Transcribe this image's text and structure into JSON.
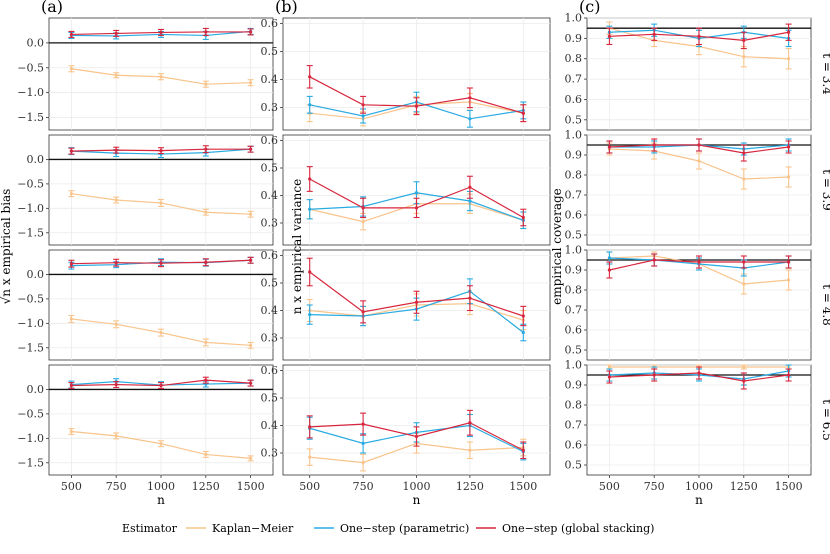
{
  "figure": {
    "column_labels": [
      "(a)",
      "(b)",
      "(c)"
    ],
    "x_title": "n",
    "legend": {
      "title": "Estimator",
      "entries": [
        {
          "name": "Kaplan−Meier",
          "color": "#F8C48C"
        },
        {
          "name": "One−step (parametric)",
          "color": "#29ABE2"
        },
        {
          "name": "One−step (global stacking)",
          "color": "#D7263D"
        }
      ]
    }
  },
  "chart_data": {
    "type": "line",
    "x": [
      500,
      750,
      1000,
      1250,
      1500
    ],
    "x_tick_labels": [
      "500",
      "750",
      "1000",
      "1250",
      "1500"
    ],
    "facet_rows": [
      "t = 3.4",
      "t = 3.9",
      "t = 4.8",
      "t = 6.5"
    ],
    "columns": [
      {
        "key": "a",
        "ylabel": "√n x empirical bias",
        "ylim": [
          -1.75,
          0.5
        ],
        "yticks": [
          0.0,
          -0.5,
          -1.0,
          -1.5
        ],
        "ytick_labels": [
          "0.0",
          "−0.5",
          "−1.0",
          "−1.5"
        ],
        "reference_line": 0,
        "rows": [
          [
            {
              "name": "Kaplan−Meier",
              "values": [
                -0.52,
                -0.65,
                -0.68,
                -0.83,
                -0.8
              ],
              "err": [
                0.06,
                0.05,
                0.06,
                0.06,
                0.06
              ]
            },
            {
              "name": "One−step (parametric)",
              "values": [
                0.15,
                0.14,
                0.17,
                0.15,
                0.23
              ],
              "err": [
                0.06,
                0.06,
                0.06,
                0.08,
                0.06
              ]
            },
            {
              "name": "One−step (global stacking)",
              "values": [
                0.17,
                0.19,
                0.21,
                0.22,
                0.22
              ],
              "err": [
                0.06,
                0.06,
                0.06,
                0.07,
                0.06
              ]
            }
          ],
          [
            {
              "name": "Kaplan−Meier",
              "values": [
                -0.7,
                -0.83,
                -0.89,
                -1.08,
                -1.12
              ],
              "err": [
                0.06,
                0.06,
                0.07,
                0.06,
                0.06
              ]
            },
            {
              "name": "One−step (parametric)",
              "values": [
                0.17,
                0.13,
                0.11,
                0.14,
                0.21
              ],
              "err": [
                0.07,
                0.07,
                0.07,
                0.07,
                0.06
              ]
            },
            {
              "name": "One−step (global stacking)",
              "values": [
                0.17,
                0.19,
                0.18,
                0.21,
                0.21
              ],
              "err": [
                0.06,
                0.06,
                0.06,
                0.07,
                0.06
              ]
            }
          ],
          [
            {
              "name": "Kaplan−Meier",
              "values": [
                -0.91,
                -1.02,
                -1.19,
                -1.39,
                -1.45
              ],
              "err": [
                0.07,
                0.07,
                0.07,
                0.07,
                0.06
              ]
            },
            {
              "name": "One−step (parametric)",
              "values": [
                0.18,
                0.2,
                0.25,
                0.24,
                0.29
              ],
              "err": [
                0.07,
                0.06,
                0.07,
                0.07,
                0.06
              ]
            },
            {
              "name": "One−step (global stacking)",
              "values": [
                0.22,
                0.24,
                0.23,
                0.25,
                0.29
              ],
              "err": [
                0.07,
                0.07,
                0.07,
                0.07,
                0.06
              ]
            }
          ],
          [
            {
              "name": "Kaplan−Meier",
              "values": [
                -0.86,
                -0.95,
                -1.11,
                -1.33,
                -1.41
              ],
              "err": [
                0.06,
                0.06,
                0.06,
                0.06,
                0.05
              ]
            },
            {
              "name": "One−step (parametric)",
              "values": [
                0.1,
                0.16,
                0.09,
                0.11,
                0.13
              ],
              "err": [
                0.07,
                0.06,
                0.07,
                0.06,
                0.06
              ]
            },
            {
              "name": "One−step (global stacking)",
              "values": [
                0.08,
                0.1,
                0.08,
                0.19,
                0.13
              ],
              "err": [
                0.06,
                0.06,
                0.06,
                0.06,
                0.06
              ]
            }
          ]
        ]
      },
      {
        "key": "b",
        "ylabel": "n x empirical variance",
        "ylim": [
          0.22,
          0.62
        ],
        "yticks": [
          0.3,
          0.4,
          0.5,
          0.6
        ],
        "ytick_labels": [
          "0.3",
          "0.4",
          "0.5",
          "0.6"
        ],
        "reference_line": null,
        "rows": [
          [
            {
              "name": "Kaplan−Meier",
              "values": [
                0.28,
                0.26,
                0.31,
                0.32,
                0.28
              ],
              "err": [
                0.03,
                0.025,
                0.03,
                0.03,
                0.03
              ]
            },
            {
              "name": "One−step (parametric)",
              "values": [
                0.31,
                0.27,
                0.32,
                0.26,
                0.29
              ],
              "err": [
                0.03,
                0.025,
                0.035,
                0.03,
                0.03
              ]
            },
            {
              "name": "One−step (global stacking)",
              "values": [
                0.41,
                0.31,
                0.305,
                0.335,
                0.28
              ],
              "err": [
                0.04,
                0.03,
                0.03,
                0.035,
                0.03
              ]
            }
          ],
          [
            {
              "name": "Kaplan−Meier",
              "values": [
                0.35,
                0.305,
                0.37,
                0.37,
                0.31
              ],
              "err": [
                0.035,
                0.03,
                0.035,
                0.035,
                0.03
              ]
            },
            {
              "name": "One−step (parametric)",
              "values": [
                0.35,
                0.36,
                0.41,
                0.38,
                0.31
              ],
              "err": [
                0.035,
                0.035,
                0.04,
                0.035,
                0.03
              ]
            },
            {
              "name": "One−step (global stacking)",
              "values": [
                0.46,
                0.355,
                0.355,
                0.43,
                0.32
              ],
              "err": [
                0.045,
                0.035,
                0.035,
                0.04,
                0.03
              ]
            }
          ],
          [
            {
              "name": "Kaplan−Meier",
              "values": [
                0.4,
                0.38,
                0.42,
                0.425,
                0.365
              ],
              "err": [
                0.04,
                0.035,
                0.04,
                0.04,
                0.035
              ]
            },
            {
              "name": "One−step (parametric)",
              "values": [
                0.385,
                0.38,
                0.405,
                0.47,
                0.32
              ],
              "err": [
                0.035,
                0.035,
                0.04,
                0.045,
                0.03
              ]
            },
            {
              "name": "One−step (global stacking)",
              "values": [
                0.54,
                0.395,
                0.43,
                0.445,
                0.38
              ],
              "err": [
                0.05,
                0.04,
                0.04,
                0.045,
                0.035
              ]
            }
          ],
          [
            {
              "name": "Kaplan−Meier",
              "values": [
                0.285,
                0.265,
                0.335,
                0.31,
                0.32
              ],
              "err": [
                0.03,
                0.03,
                0.035,
                0.03,
                0.03
              ]
            },
            {
              "name": "One−step (parametric)",
              "values": [
                0.39,
                0.335,
                0.375,
                0.4,
                0.305
              ],
              "err": [
                0.04,
                0.035,
                0.035,
                0.04,
                0.03
              ]
            },
            {
              "name": "One−step (global stacking)",
              "values": [
                0.395,
                0.405,
                0.36,
                0.41,
                0.31
              ],
              "err": [
                0.04,
                0.04,
                0.035,
                0.045,
                0.03
              ]
            }
          ]
        ]
      },
      {
        "key": "c",
        "ylabel": "empirical coverage",
        "ylim": [
          0.45,
          1.0
        ],
        "yticks": [
          0.5,
          0.6,
          0.7,
          0.8,
          0.9,
          1.0
        ],
        "ytick_labels": [
          "0.5",
          "0.6",
          "0.7",
          "0.8",
          "0.9",
          "1.0"
        ],
        "reference_line": 0.95,
        "rows": [
          [
            {
              "name": "Kaplan−Meier",
              "values": [
                0.95,
                0.89,
                0.86,
                0.81,
                0.8
              ],
              "err": [
                0.03,
                0.03,
                0.04,
                0.05,
                0.05
              ]
            },
            {
              "name": "One−step (parametric)",
              "values": [
                0.93,
                0.94,
                0.9,
                0.93,
                0.9
              ],
              "err": [
                0.03,
                0.03,
                0.04,
                0.03,
                0.04
              ]
            },
            {
              "name": "One−step (global stacking)",
              "values": [
                0.91,
                0.92,
                0.91,
                0.89,
                0.93
              ],
              "err": [
                0.04,
                0.03,
                0.04,
                0.04,
                0.04
              ]
            }
          ],
          [
            {
              "name": "Kaplan−Meier",
              "values": [
                0.93,
                0.92,
                0.87,
                0.78,
                0.79
              ],
              "err": [
                0.03,
                0.04,
                0.04,
                0.05,
                0.05
              ]
            },
            {
              "name": "One−step (parametric)",
              "values": [
                0.94,
                0.94,
                0.95,
                0.93,
                0.95
              ],
              "err": [
                0.03,
                0.03,
                0.03,
                0.03,
                0.03
              ]
            },
            {
              "name": "One−step (global stacking)",
              "values": [
                0.94,
                0.95,
                0.95,
                0.91,
                0.94
              ],
              "err": [
                0.03,
                0.03,
                0.03,
                0.04,
                0.03
              ]
            }
          ],
          [
            {
              "name": "Kaplan−Meier",
              "values": [
                0.96,
                0.97,
                0.93,
                0.83,
                0.85
              ],
              "err": [
                0.03,
                0.02,
                0.03,
                0.05,
                0.05
              ]
            },
            {
              "name": "One−step (parametric)",
              "values": [
                0.96,
                0.95,
                0.93,
                0.91,
                0.94
              ],
              "err": [
                0.03,
                0.03,
                0.03,
                0.04,
                0.03
              ]
            },
            {
              "name": "One−step (global stacking)",
              "values": [
                0.9,
                0.95,
                0.94,
                0.94,
                0.94
              ],
              "err": [
                0.04,
                0.03,
                0.03,
                0.03,
                0.03
              ]
            }
          ],
          [
            {
              "name": "Kaplan−Meier",
              "values": [
                0.99,
                0.99,
                0.99,
                0.99,
                0.99
              ],
              "err": [
                0.01,
                0.01,
                0.01,
                0.01,
                0.01
              ]
            },
            {
              "name": "One−step (parametric)",
              "values": [
                0.95,
                0.96,
                0.95,
                0.93,
                0.97
              ],
              "err": [
                0.03,
                0.03,
                0.03,
                0.03,
                0.03
              ]
            },
            {
              "name": "One−step (global stacking)",
              "values": [
                0.94,
                0.95,
                0.96,
                0.92,
                0.95
              ],
              "err": [
                0.03,
                0.03,
                0.03,
                0.04,
                0.03
              ]
            }
          ]
        ]
      }
    ]
  }
}
